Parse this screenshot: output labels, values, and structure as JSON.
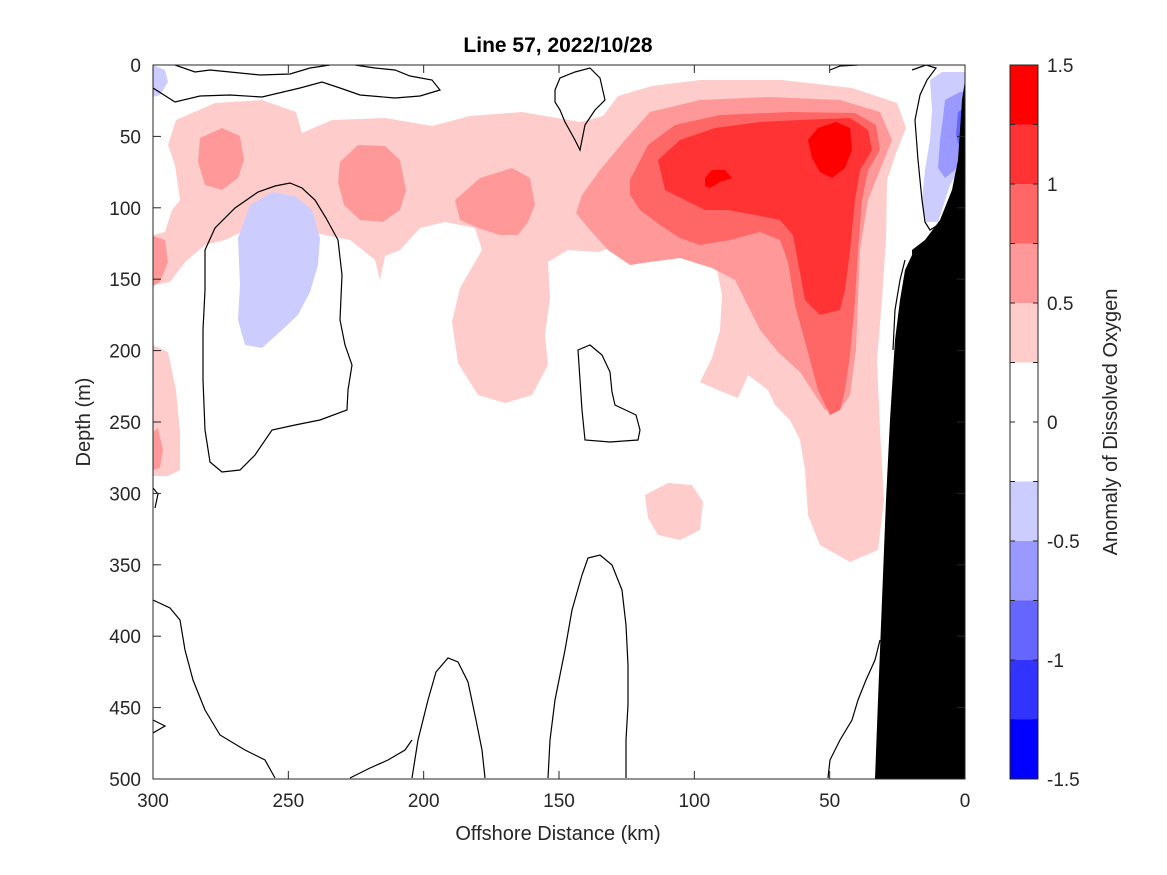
{
  "chart_data": {
    "type": "heatmap",
    "title": "Line 57, 2022/10/28",
    "xlabel": "Offshore Distance (km)",
    "ylabel": "Depth (m)",
    "colorbar_label": "Anomaly of Dissolved Oxygen",
    "xlim": [
      300,
      0
    ],
    "ylim": [
      500,
      0
    ],
    "x_reversed": true,
    "y_reversed": true,
    "x_ticks": [
      "300",
      "250",
      "200",
      "150",
      "100",
      "50",
      "0"
    ],
    "y_ticks": [
      "0",
      "50",
      "100",
      "150",
      "200",
      "250",
      "300",
      "350",
      "400",
      "450",
      "500"
    ],
    "colorbar_ticks": [
      "1.5",
      "1",
      "0.5",
      "0",
      "-0.5",
      "-1",
      "-1.5"
    ],
    "colorbar_range": [
      -1.5,
      1.5
    ],
    "contour_interval": 0.25,
    "colorbar_colors": [
      "#ff0000",
      "#ff3333",
      "#ff6666",
      "#ff9999",
      "#ffcccc",
      "#ffffff",
      "#ffffff",
      "#ccccff",
      "#9999ff",
      "#6666ff",
      "#3333ff",
      "#0000ff"
    ],
    "bottom_topography_color": "#000000",
    "features": [
      {
        "type": "positive anomaly core",
        "x": 50,
        "depth": 60,
        "value": 1.25
      },
      {
        "type": "positive anomaly core",
        "x": 90,
        "depth": 80,
        "value": 1.25
      },
      {
        "type": "positive anomaly tongue",
        "x": 50,
        "depth": 340,
        "value": 0.25
      },
      {
        "type": "negative anomaly",
        "x": 250,
        "depth": 150,
        "value": -0.25
      },
      {
        "type": "negative anomaly",
        "x": 5,
        "depth": 60,
        "value": -0.75
      }
    ]
  }
}
